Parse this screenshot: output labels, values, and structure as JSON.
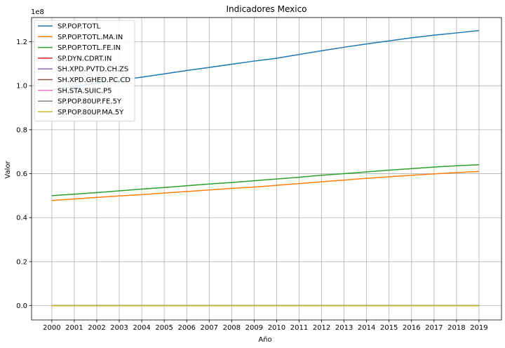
{
  "chart_data": {
    "type": "line",
    "title": "Indicadores Mexico",
    "xlabel": "Año",
    "ylabel": "Valor",
    "y_scale_label": "1e8",
    "x": [
      2000,
      2001,
      2002,
      2003,
      2004,
      2005,
      2006,
      2007,
      2008,
      2009,
      2010,
      2011,
      2012,
      2013,
      2014,
      2015,
      2016,
      2017,
      2018,
      2019
    ],
    "x_tick_labels": [
      "2000",
      "2001",
      "2002",
      "2003",
      "2004",
      "2005",
      "2006",
      "2007",
      "2008",
      "2009",
      "2010",
      "2011",
      "2012",
      "2013",
      "2014",
      "2015",
      "2016",
      "2017",
      "2018",
      "2019"
    ],
    "xlim": [
      1999.1,
      2020.0
    ],
    "ylim": [
      -6500000,
      131000000
    ],
    "y_ticks": [
      0,
      20000000,
      40000000,
      60000000,
      80000000,
      100000000,
      120000000
    ],
    "y_tick_labels": [
      "0.0",
      "0.2",
      "0.4",
      "0.6",
      "0.8",
      "1.0",
      "1.2"
    ],
    "grid": true,
    "legend_position": "top-left",
    "series": [
      {
        "name": "SP.POP.TOTL",
        "color": "#1f77b4",
        "values": [
          98000000,
          99700000,
          101100000,
          102500000,
          103900000,
          105400000,
          106900000,
          108300000,
          109800000,
          111200000,
          112500000,
          114200000,
          115900000,
          117500000,
          119000000,
          120400000,
          121800000,
          123000000,
          124000000,
          125100000
        ]
      },
      {
        "name": "SP.POP.TOTL.MA.IN",
        "color": "#ff7f0e",
        "values": [
          47800000,
          48500000,
          49200000,
          49900000,
          50500000,
          51200000,
          51900000,
          52600000,
          53300000,
          53900000,
          54700000,
          55500000,
          56300000,
          57100000,
          57900000,
          58600000,
          59300000,
          59900000,
          60500000,
          61000000
        ]
      },
      {
        "name": "SP.POP.TOTL.FE.IN",
        "color": "#2ca02c",
        "values": [
          50000000,
          50700000,
          51400000,
          52200000,
          53000000,
          53700000,
          54500000,
          55300000,
          56000000,
          56800000,
          57600000,
          58400000,
          59300000,
          60000000,
          60800000,
          61600000,
          62300000,
          63000000,
          63600000,
          64100000
        ]
      },
      {
        "name": "SP.DYN.CDRT.IN",
        "color": "#d62728",
        "values": [
          5,
          5,
          5,
          5,
          5,
          5,
          5,
          5,
          5,
          5,
          6,
          6,
          6,
          6,
          6,
          6,
          6,
          6,
          6,
          6
        ]
      },
      {
        "name": "SH.XPD.PVTD.CH.ZS",
        "color": "#9467bd",
        "values": [
          50,
          50,
          51,
          52,
          53,
          52,
          51,
          51,
          50,
          49,
          48,
          48,
          48,
          48,
          47,
          47,
          47,
          48,
          48,
          48
        ]
      },
      {
        "name": "SH.XPD.GHED.PC.CD",
        "color": "#8c564b",
        "values": [
          140,
          160,
          180,
          190,
          210,
          230,
          250,
          270,
          290,
          270,
          300,
          320,
          340,
          360,
          360,
          330,
          300,
          300,
          310,
          320
        ]
      },
      {
        "name": "SH.STA.SUIC.P5",
        "color": "#e377c2",
        "values": [
          4,
          4,
          4,
          4,
          4,
          4,
          4,
          4,
          5,
          5,
          5,
          5,
          5,
          5,
          5,
          5,
          5,
          5,
          5,
          5
        ]
      },
      {
        "name": "SP.POP.80UP.FE.5Y",
        "color": "#7f7f7f",
        "values": [
          1,
          1,
          1,
          1,
          1,
          1,
          1,
          1,
          1,
          1,
          1,
          1,
          1,
          1,
          1,
          1,
          1,
          1,
          1,
          1
        ]
      },
      {
        "name": "SP.POP.80UP.MA.5Y",
        "color": "#bcbd22",
        "values": [
          1,
          1,
          1,
          1,
          1,
          1,
          1,
          1,
          1,
          1,
          1,
          1,
          1,
          1,
          1,
          1,
          1,
          1,
          1,
          1
        ]
      }
    ]
  }
}
